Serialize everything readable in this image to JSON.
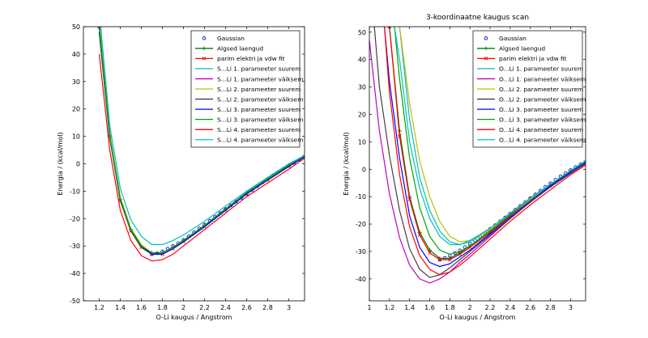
{
  "figure": {
    "background": "#ffffff"
  },
  "chart_data": [
    {
      "type": "line",
      "title": "",
      "xlabel": "O-Li kaugus / Angstrom",
      "ylabel": "Energia / (kcal/mol)",
      "xlim": [
        1.05,
        3.15
      ],
      "ylim": [
        -50,
        50
      ],
      "xticks": [
        1.2,
        1.4,
        1.6,
        1.8,
        2,
        2.2,
        2.4,
        2.6,
        2.8,
        3
      ],
      "xtick_labels": [
        "1.2",
        "1.4",
        "1.6",
        "1.8",
        "2",
        "2.2",
        "2.4",
        "2.6",
        "2.8",
        "3"
      ],
      "yticks": [
        -50,
        -40,
        -30,
        -20,
        -10,
        0,
        10,
        20,
        30,
        40,
        50
      ],
      "ytick_labels": [
        "-50",
        "-40",
        "-30",
        "-20",
        "-10",
        "0",
        "10",
        "20",
        "30",
        "40",
        "50"
      ],
      "grid": false,
      "legend_position": "top-right",
      "series": [
        {
          "name": "Gaussian",
          "color": "#0000ff",
          "style": "markers",
          "x": [
            1.7,
            1.75,
            1.8,
            1.85,
            1.9,
            1.95,
            2.0,
            2.05,
            2.1,
            2.15,
            2.2,
            2.25,
            2.3,
            2.35,
            2.4,
            2.45,
            2.5,
            2.55,
            2.6,
            2.65,
            2.7,
            2.75,
            2.8,
            2.85,
            2.9,
            2.95,
            3.0,
            3.05,
            3.1
          ],
          "y": [
            -33,
            -32.6,
            -32,
            -31,
            -30,
            -29,
            -27.8,
            -26.5,
            -25,
            -23.6,
            -22.2,
            -20.8,
            -19.4,
            -18,
            -16.6,
            -15.2,
            -13.8,
            -12.4,
            -11,
            -9.6,
            -8.2,
            -6.8,
            -5.5,
            -4.2,
            -3,
            -1.8,
            -0.7,
            0.4,
            1.5
          ]
        },
        {
          "name": "Algsed laengud",
          "color": "#007f00",
          "style": "line-plus",
          "x": [
            1.2,
            1.3,
            1.4,
            1.5,
            1.6,
            1.7,
            1.8,
            1.9,
            2.0,
            2.2,
            2.4,
            2.6,
            2.8,
            3.0,
            3.15
          ],
          "y": [
            50,
            10,
            -13,
            -24,
            -30,
            -32.5,
            -32.5,
            -30.5,
            -28,
            -22.5,
            -16.5,
            -10.5,
            -5.5,
            -0.5,
            3
          ]
        },
        {
          "name": "parim elektri ja vdw fit",
          "color": "#ff0000",
          "style": "line-x",
          "x": [
            1.2,
            1.3,
            1.4,
            1.5,
            1.6,
            1.7,
            1.8,
            1.9,
            2.0,
            2.2,
            2.4,
            2.6,
            2.8,
            3.0,
            3.15
          ],
          "y": [
            50,
            10,
            -13.5,
            -24.5,
            -30.5,
            -33,
            -33,
            -31,
            -28.5,
            -23,
            -17,
            -11,
            -6,
            -1,
            2.5
          ]
        },
        {
          "name": "S...Li 1. parameeter suurem",
          "color": "#00bfbf",
          "style": "line",
          "x": [
            1.2,
            1.3,
            1.4,
            1.5,
            1.6,
            1.7,
            1.8,
            1.9,
            2.0,
            2.2,
            2.4,
            2.6,
            2.8,
            3.0,
            3.15
          ],
          "y": [
            52,
            11,
            -12.5,
            -24,
            -30,
            -33,
            -33,
            -31,
            -28.5,
            -23,
            -17,
            -11,
            -6,
            -1,
            2.5
          ]
        },
        {
          "name": "S...Li 1. parameeter väiksem",
          "color": "#bf00bf",
          "style": "line",
          "x": [
            1.2,
            1.3,
            1.4,
            1.5,
            1.6,
            1.7,
            1.8,
            1.9,
            2.0,
            2.2,
            2.4,
            2.6,
            2.8,
            3.0,
            3.15
          ],
          "y": [
            48,
            9.5,
            -13,
            -24.5,
            -30.5,
            -33,
            -32.5,
            -30.5,
            -28,
            -22.5,
            -16.5,
            -10.5,
            -5.5,
            -0.5,
            3
          ]
        },
        {
          "name": "S...Li 2. parameeter suurem",
          "color": "#bfbf00",
          "style": "line",
          "x": [
            1.2,
            1.3,
            1.4,
            1.5,
            1.6,
            1.7,
            1.8,
            1.9,
            2.0,
            2.2,
            2.4,
            2.6,
            2.8,
            3.0,
            3.15
          ],
          "y": [
            52,
            11,
            -12,
            -23.5,
            -29.5,
            -32.5,
            -33,
            -31,
            -28.5,
            -23,
            -17,
            -11,
            -6,
            -1,
            2.5
          ]
        },
        {
          "name": "S...Li 2. parameeter väiksem",
          "color": "#404040",
          "style": "line",
          "x": [
            1.2,
            1.3,
            1.4,
            1.5,
            1.6,
            1.7,
            1.8,
            1.9,
            2.0,
            2.2,
            2.4,
            2.6,
            2.8,
            3.0,
            3.15
          ],
          "y": [
            48,
            9.5,
            -13.5,
            -24.5,
            -30.5,
            -33,
            -32.5,
            -30.5,
            -28,
            -22.5,
            -16.5,
            -10.5,
            -5.5,
            -0.5,
            3
          ]
        },
        {
          "name": "S...Li 3. parameeter suurem",
          "color": "#0000ff",
          "style": "line",
          "x": [
            1.2,
            1.3,
            1.4,
            1.5,
            1.6,
            1.7,
            1.8,
            1.9,
            2.0,
            2.2,
            2.4,
            2.6,
            2.8,
            3.0,
            3.15
          ],
          "y": [
            50,
            10,
            -13,
            -24,
            -30,
            -33,
            -33,
            -31,
            -28.5,
            -23,
            -17,
            -11,
            -6,
            -1,
            2.5
          ]
        },
        {
          "name": "S...Li 3. parameeter väiksem",
          "color": "#00a000",
          "style": "line",
          "x": [
            1.2,
            1.3,
            1.4,
            1.5,
            1.6,
            1.7,
            1.8,
            1.9,
            2.0,
            2.2,
            2.4,
            2.6,
            2.8,
            3.0,
            3.15
          ],
          "y": [
            50,
            10,
            -13,
            -24,
            -30,
            -32.5,
            -32.5,
            -30.5,
            -28,
            -22.5,
            -16.5,
            -10.5,
            -5.5,
            -0.5,
            3
          ]
        },
        {
          "name": "S...Li 4. parameeter suurem",
          "color": "#ff0000",
          "style": "line",
          "x": [
            1.2,
            1.3,
            1.4,
            1.5,
            1.6,
            1.7,
            1.8,
            1.9,
            2.0,
            2.2,
            2.4,
            2.6,
            2.8,
            3.0,
            3.15
          ],
          "y": [
            40,
            5,
            -17,
            -28,
            -33.5,
            -35.5,
            -35,
            -33,
            -30,
            -24,
            -18,
            -12,
            -7,
            -2,
            2
          ]
        },
        {
          "name": "S...Li 4. parameeter väiksem",
          "color": "#00bfbf",
          "style": "line",
          "x": [
            1.2,
            1.3,
            1.4,
            1.5,
            1.6,
            1.7,
            1.8,
            1.9,
            2.0,
            2.2,
            2.4,
            2.6,
            2.8,
            3.0,
            3.15
          ],
          "y": [
            56,
            14,
            -9,
            -20.5,
            -26.5,
            -29.5,
            -29.5,
            -28,
            -26,
            -21,
            -15.5,
            -10,
            -5,
            0,
            3
          ]
        }
      ]
    },
    {
      "type": "line",
      "title": "3-koordinaatne kaugus scan",
      "xlabel": "O-Li kaugus / Angstrom",
      "ylabel": "Energia / (kcal/mol)",
      "xlim": [
        1.0,
        3.15
      ],
      "ylim": [
        -48,
        52
      ],
      "xticks": [
        1,
        1.2,
        1.4,
        1.6,
        1.8,
        2,
        2.2,
        2.4,
        2.6,
        2.8,
        3
      ],
      "xtick_labels": [
        "1",
        "1.2",
        "1.4",
        "1.6",
        "1.8",
        "2",
        "2.2",
        "2.4",
        "2.6",
        "2.8",
        "3"
      ],
      "yticks": [
        -40,
        -30,
        -20,
        -10,
        0,
        10,
        20,
        30,
        40,
        50
      ],
      "ytick_labels": [
        "-40",
        "-30",
        "-20",
        "-10",
        "0",
        "10",
        "20",
        "30",
        "40",
        "50"
      ],
      "grid": false,
      "legend_position": "top-right",
      "series": [
        {
          "name": "Gaussian",
          "color": "#0000ff",
          "style": "markers",
          "x": [
            1.7,
            1.75,
            1.8,
            1.85,
            1.9,
            1.95,
            2.0,
            2.05,
            2.1,
            2.15,
            2.2,
            2.25,
            2.3,
            2.35,
            2.4,
            2.45,
            2.5,
            2.55,
            2.6,
            2.65,
            2.7,
            2.75,
            2.8,
            2.85,
            2.9,
            2.95,
            3.0,
            3.05,
            3.1
          ],
          "y": [
            -33,
            -32.4,
            -31.6,
            -30.6,
            -29.6,
            -28.4,
            -27.2,
            -25.9,
            -24.6,
            -23.2,
            -21.8,
            -20.4,
            -19,
            -17.6,
            -16.2,
            -14.8,
            -13.4,
            -12,
            -10.6,
            -9.2,
            -7.8,
            -6.4,
            -5.1,
            -3.8,
            -2.6,
            -1.4,
            -0.3,
            0.8,
            1.8
          ]
        },
        {
          "name": "Algsed laengud",
          "color": "#007f00",
          "style": "line-plus",
          "x": [
            1.2,
            1.3,
            1.4,
            1.5,
            1.6,
            1.7,
            1.8,
            1.9,
            2.0,
            2.2,
            2.4,
            2.6,
            2.8,
            3.0,
            3.15
          ],
          "y": [
            52,
            14,
            -10,
            -23,
            -29.5,
            -32.5,
            -32.5,
            -30.5,
            -28,
            -22.5,
            -16.5,
            -10.5,
            -5.5,
            -0.5,
            3
          ]
        },
        {
          "name": "parim elektri ja vdw fit",
          "color": "#ff0000",
          "style": "line-x",
          "x": [
            1.2,
            1.3,
            1.4,
            1.5,
            1.6,
            1.7,
            1.8,
            1.9,
            2.0,
            2.2,
            2.4,
            2.6,
            2.8,
            3.0,
            3.15
          ],
          "y": [
            52,
            12,
            -11,
            -24,
            -30.5,
            -33,
            -33,
            -31,
            -28.5,
            -23,
            -17,
            -11,
            -6,
            -1,
            2.5
          ]
        },
        {
          "name": "O...Li 1. parameeter suurem",
          "color": "#00bfbf",
          "style": "line",
          "x": [
            1.3,
            1.4,
            1.5,
            1.6,
            1.7,
            1.8,
            1.9,
            2.0,
            2.2,
            2.4,
            2.6,
            2.8,
            3.0,
            3.15
          ],
          "y": [
            52,
            18,
            -3,
            -15,
            -22.5,
            -26.5,
            -27.5,
            -26.5,
            -22,
            -16.5,
            -11,
            -6,
            -1,
            2.5
          ]
        },
        {
          "name": "O...Li 1. parameeter väiksem",
          "color": "#bf00bf",
          "style": "line",
          "x": [
            1.0,
            1.1,
            1.2,
            1.3,
            1.4,
            1.5,
            1.6,
            1.7,
            1.8,
            1.9,
            2.0,
            2.2,
            2.4,
            2.6,
            2.8,
            3.0,
            3.15
          ],
          "y": [
            47,
            14,
            -9,
            -25,
            -35,
            -40,
            -41.5,
            -40,
            -37.5,
            -34,
            -31,
            -24.5,
            -18,
            -12,
            -6.5,
            -1.5,
            2
          ]
        },
        {
          "name": "O...Li 2. parameeter suurem",
          "color": "#bfbf00",
          "style": "line",
          "x": [
            1.3,
            1.4,
            1.5,
            1.6,
            1.7,
            1.8,
            1.9,
            2.0,
            2.2,
            2.4,
            2.6,
            2.8,
            3.0,
            3.15
          ],
          "y": [
            52,
            24,
            3,
            -10,
            -19,
            -24.5,
            -26.5,
            -26,
            -22,
            -16.5,
            -11,
            -6,
            -1,
            2.5
          ]
        },
        {
          "name": "O...Li 2. parameeter väiksem",
          "color": "#404040",
          "style": "line",
          "x": [
            1.05,
            1.1,
            1.2,
            1.3,
            1.4,
            1.5,
            1.6,
            1.7,
            1.8,
            1.9,
            2.0,
            2.2,
            2.4,
            2.6,
            2.8,
            3.0,
            3.15
          ],
          "y": [
            52,
            30,
            5,
            -15,
            -29,
            -36.5,
            -39.5,
            -38.5,
            -36,
            -33,
            -30,
            -24,
            -18,
            -12,
            -6.5,
            -1.5,
            2
          ]
        },
        {
          "name": "O...Li 3. parameeter suurem",
          "color": "#0000ff",
          "style": "line",
          "x": [
            1.15,
            1.2,
            1.3,
            1.4,
            1.5,
            1.6,
            1.7,
            1.8,
            1.9,
            2.0,
            2.2,
            2.4,
            2.6,
            2.8,
            3.0,
            3.15
          ],
          "y": [
            52,
            32,
            4,
            -17,
            -28.5,
            -34,
            -35.5,
            -34.5,
            -32,
            -29.5,
            -23.5,
            -17.5,
            -11.5,
            -6,
            -1,
            2.5
          ]
        },
        {
          "name": "O...Li 3. parameeter väiksem",
          "color": "#00a000",
          "style": "line",
          "x": [
            1.25,
            1.3,
            1.4,
            1.5,
            1.6,
            1.7,
            1.8,
            1.9,
            2.0,
            2.2,
            2.4,
            2.6,
            2.8,
            3.0,
            3.15
          ],
          "y": [
            52,
            33,
            4,
            -14,
            -24.5,
            -29.5,
            -31,
            -30,
            -28,
            -22.5,
            -16.5,
            -10.5,
            -5.5,
            -0.5,
            3
          ]
        },
        {
          "name": "O...Li 4. parameeter suurem",
          "color": "#ff0000",
          "style": "line",
          "x": [
            1.15,
            1.2,
            1.3,
            1.4,
            1.5,
            1.6,
            1.7,
            1.8,
            1.9,
            2.0,
            2.2,
            2.4,
            2.6,
            2.8,
            3.0,
            3.15
          ],
          "y": [
            52,
            28,
            -2,
            -21,
            -31.5,
            -36.5,
            -38.5,
            -37.5,
            -35,
            -32,
            -25.5,
            -19,
            -13,
            -7.5,
            -2,
            1.5
          ]
        },
        {
          "name": "O...Li 4. parameeter väiksem",
          "color": "#00bfbf",
          "style": "line",
          "x": [
            1.25,
            1.3,
            1.4,
            1.5,
            1.6,
            1.7,
            1.8,
            1.9,
            2.0,
            2.2,
            2.4,
            2.6,
            2.8,
            3.0,
            3.15
          ],
          "y": [
            52,
            40,
            10,
            -7,
            -18,
            -24.5,
            -27.5,
            -27.5,
            -26,
            -21.5,
            -16,
            -10.5,
            -5.5,
            -0.5,
            3
          ]
        }
      ]
    }
  ]
}
